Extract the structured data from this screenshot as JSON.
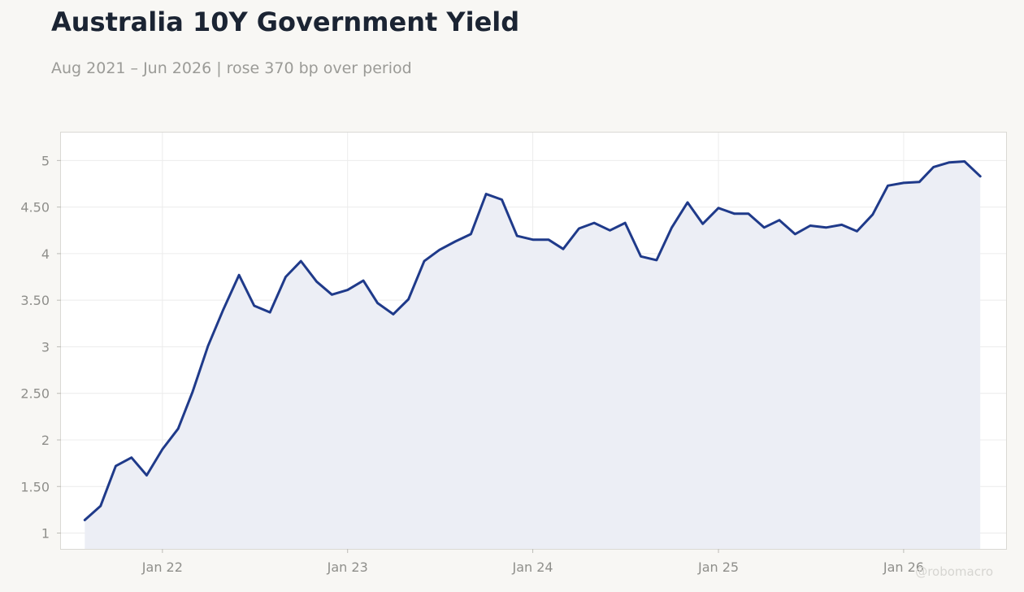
{
  "header": {
    "title": "Australia 10Y Government Yield",
    "subtitle": "Aug 2021 – Jun 2026 | rose 370 bp over period"
  },
  "watermark": "@robomacro",
  "colors": {
    "line": "#1f3a8a",
    "fill": "#eceef5",
    "plot_bg": "#ffffff",
    "page_bg": "#f8f7f4",
    "grid": "#ececec"
  },
  "chart_data": {
    "type": "area",
    "title": "Australia 10Y Government Yield",
    "subtitle": "Aug 2021 – Jun 2026 | rose 370 bp over period",
    "xlabel": "",
    "ylabel": "",
    "grid": true,
    "legend": "none",
    "ylim": [
      0.83,
      5.3
    ],
    "xlim": [
      "2021-06-15",
      "2026-07-22"
    ],
    "y_ticks": [
      1,
      1.5,
      2,
      2.5,
      3,
      3.5,
      4,
      4.5,
      5
    ],
    "y_tick_labels": [
      "1",
      "1.50",
      "2",
      "2.50",
      "3",
      "3.50",
      "4",
      "4.50",
      "5"
    ],
    "x_ticks": [
      "2022-01-01",
      "2023-01-01",
      "2024-01-01",
      "2025-01-01",
      "2026-01-01"
    ],
    "x_tick_labels": [
      "Jan 22",
      "Jan 23",
      "Jan 24",
      "Jan 25",
      "Jan 26"
    ],
    "series": [
      {
        "x": [
          "2021-08-01",
          "2021-09-01",
          "2021-10-01",
          "2021-11-01",
          "2021-12-01",
          "2022-01-01",
          "2022-02-01",
          "2022-03-01",
          "2022-04-01",
          "2022-05-01",
          "2022-06-01",
          "2022-07-01",
          "2022-08-01",
          "2022-09-01",
          "2022-10-01",
          "2022-11-01",
          "2022-12-01",
          "2023-01-01",
          "2023-02-01",
          "2023-03-01",
          "2023-04-01",
          "2023-05-01",
          "2023-06-01",
          "2023-07-01",
          "2023-08-01",
          "2023-09-01",
          "2023-10-01",
          "2023-11-01",
          "2023-12-01",
          "2024-01-01",
          "2024-02-01",
          "2024-03-01",
          "2024-04-01",
          "2024-05-01",
          "2024-06-01",
          "2024-07-01",
          "2024-08-01",
          "2024-09-01",
          "2024-10-01",
          "2024-11-01",
          "2024-12-01",
          "2025-01-01",
          "2025-02-01",
          "2025-03-01",
          "2025-04-01",
          "2025-05-01",
          "2025-06-01",
          "2025-07-01",
          "2025-08-01",
          "2025-09-01",
          "2025-10-01",
          "2025-11-01",
          "2025-12-01",
          "2026-01-01",
          "2026-02-01",
          "2026-03-01",
          "2026-04-01",
          "2026-05-01",
          "2026-06-01"
        ],
        "values": [
          1.14,
          1.29,
          1.72,
          1.81,
          1.62,
          1.9,
          2.12,
          2.51,
          3.01,
          3.4,
          3.77,
          3.44,
          3.37,
          3.75,
          3.92,
          3.7,
          3.56,
          3.61,
          3.71,
          3.47,
          3.35,
          3.51,
          3.92,
          4.04,
          4.13,
          4.21,
          4.64,
          4.58,
          4.19,
          4.15,
          4.15,
          4.05,
          4.27,
          4.33,
          4.25,
          4.33,
          3.97,
          3.93,
          4.28,
          4.55,
          4.32,
          4.49,
          4.43,
          4.43,
          4.28,
          4.36,
          4.21,
          4.3,
          4.28,
          4.31,
          4.24,
          4.42,
          4.73,
          4.76,
          4.77,
          4.93,
          4.98,
          4.99,
          4.83
        ]
      }
    ]
  }
}
